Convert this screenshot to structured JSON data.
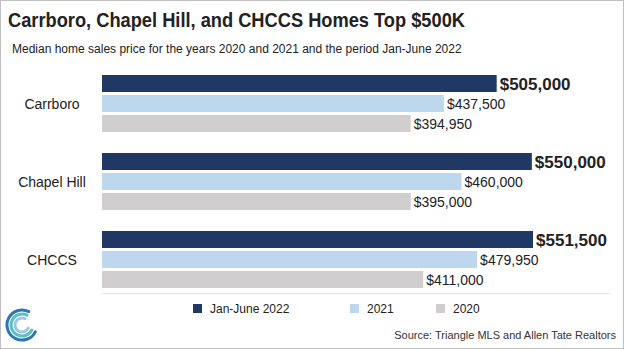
{
  "chart_data": {
    "type": "bar",
    "orientation": "horizontal",
    "title": "Carrboro, Chapel Hill, and CHCCS Homes Top $500K",
    "subtitle": "Median home sales price for the years 2020 and 2021 and the period Jan-June 2022",
    "source": "Source: Triangle MLS and Allen Tate Realtors",
    "categories": [
      "Carrboro",
      "Chapel Hill",
      "CHCCS"
    ],
    "series": [
      {
        "name": "Jan-June 2022",
        "color": "#203864",
        "values": [
          505000,
          550000,
          551500
        ],
        "value_labels": [
          "$505,000",
          "$550,000",
          "$551,500"
        ]
      },
      {
        "name": "2021",
        "color": "#bdd7ee",
        "values": [
          437500,
          460000,
          479950
        ],
        "value_labels": [
          "$437,500",
          "$460,000",
          "$479,950"
        ]
      },
      {
        "name": "2020",
        "color": "#d0cece",
        "values": [
          394950,
          395000,
          411000
        ],
        "value_labels": [
          "$394,950",
          "$395,000",
          "$411,000"
        ]
      }
    ],
    "xlim": [
      0,
      650000
    ],
    "tick_labels": false,
    "grid": false,
    "data_labels": true,
    "legend": "bottom"
  }
}
